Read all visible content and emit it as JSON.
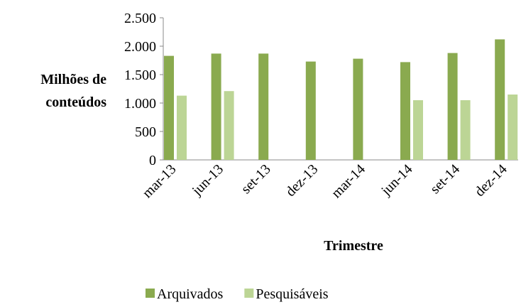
{
  "chart_data": {
    "type": "bar",
    "x_label": "Trimestre",
    "y_label": "Milhões de conteúdos",
    "categories": [
      "mar-13",
      "jun-13",
      "set-13",
      "dez-13",
      "mar-14",
      "jun-14",
      "set-14",
      "dez-14"
    ],
    "series": [
      {
        "name": "Arquivados",
        "color": "#8aaa4f",
        "values": [
          1830,
          1870,
          1870,
          1730,
          1780,
          1720,
          1880,
          2120
        ]
      },
      {
        "name": "Pesquisáveis",
        "color": "#bcd595",
        "values": [
          1130,
          1210,
          null,
          null,
          null,
          1050,
          1050,
          1150
        ]
      }
    ],
    "ylim": [
      0,
      2500
    ],
    "yticks": [
      0,
      {
        "value": 500,
        "label": "500"
      },
      {
        "value": 1000,
        "label": "1.000"
      },
      {
        "value": 1500,
        "label": "1.500"
      },
      {
        "value": 2000,
        "label": "2.000"
      },
      {
        "value": 2500,
        "label": "2.500"
      }
    ],
    "grid": false,
    "legend": "bottom"
  }
}
